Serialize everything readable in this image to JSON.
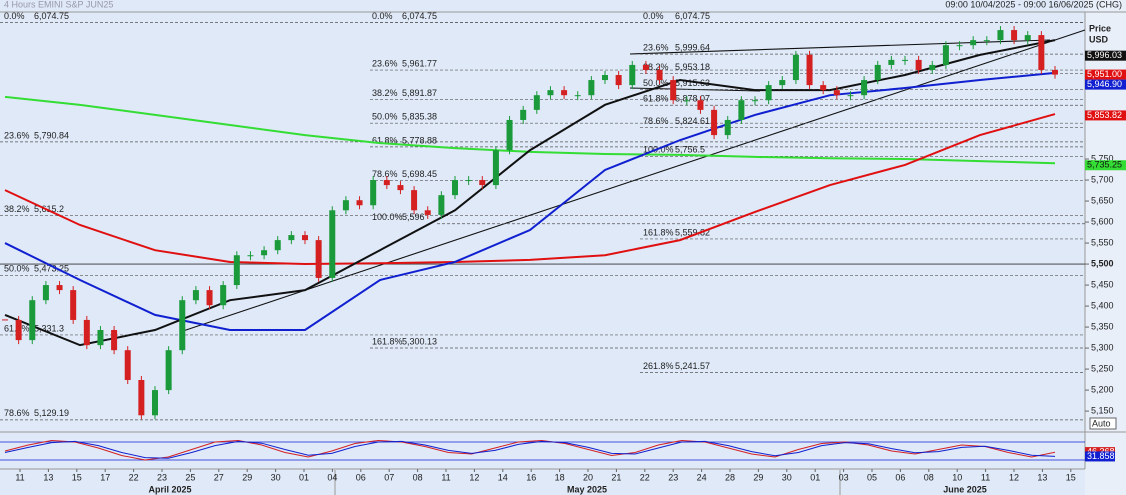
{
  "chart_data": {
    "type": "candlestick",
    "title": "4 Hours EMINI S&P JUN25",
    "date_range": "09:00 10/04/2025 - 09:00 16/06/2025 (CHG)",
    "y_label": "Price",
    "y_unit": "USD",
    "button": "Auto",
    "ylim": [
      5105,
      6100
    ],
    "yticks": [
      {
        "value": 5150,
        "label": "5,150"
      },
      {
        "value": 5200,
        "label": "5,200"
      },
      {
        "value": 5250,
        "label": "5,250"
      },
      {
        "value": 5300,
        "label": "5,300"
      },
      {
        "value": 5350,
        "label": "5,350"
      },
      {
        "value": 5400,
        "label": "5,400"
      },
      {
        "value": 5450,
        "label": "5,450"
      },
      {
        "value": 5500,
        "label": "5,500"
      },
      {
        "value": 5550,
        "label": "5,550"
      },
      {
        "value": 5600,
        "label": "5,600"
      },
      {
        "value": 5650,
        "label": "5,650"
      },
      {
        "value": 5700,
        "label": "5,700"
      },
      {
        "value": 5750,
        "label": "5,750"
      }
    ],
    "x_labels": [
      "11",
      "13",
      "15",
      "17",
      "22",
      "23",
      "25",
      "27",
      "29",
      "30",
      "01",
      "04",
      "06",
      "07",
      "08",
      "11",
      "12",
      "14",
      "16",
      "18",
      "20",
      "21",
      "22",
      "23",
      "24",
      "28",
      "29",
      "30",
      "01",
      "03",
      "05",
      "06",
      "08",
      "10",
      "11",
      "12",
      "13",
      "15"
    ],
    "months": [
      "April 2025",
      "May 2025",
      "June 2025"
    ],
    "closes": [
      5367,
      5319,
      5414,
      5450,
      5438,
      5367,
      5307,
      5343,
      5295,
      5224,
      5140,
      5200,
      5295,
      5414,
      5438,
      5402,
      5450,
      5521,
      5521,
      5533,
      5557,
      5569,
      5557,
      5467,
      5628,
      5652,
      5640,
      5700,
      5688,
      5676,
      5628,
      5617,
      5664,
      5700,
      5700,
      5688,
      5771,
      5843,
      5867,
      5902,
      5914,
      5902,
      5902,
      5938,
      5950,
      5926,
      5974,
      5962,
      5938,
      5890,
      5890,
      5867,
      5807,
      5843,
      5890,
      5890,
      5926,
      5938,
      5998,
      5926,
      5914,
      5902,
      5902,
      5938,
      5974,
      5986,
      5986,
      5962,
      5974,
      6021,
      6021,
      6033,
      6033,
      6057,
      6033,
      6045,
      5962,
      5951
    ],
    "up_color": "#1a9a3a",
    "down_color": "#d42020",
    "series": [
      {
        "color": "#33dd33",
        "values": [
          5898,
          5879,
          5855,
          5831,
          5807,
          5788,
          5776,
          5767,
          5762,
          5760,
          5755,
          5752,
          5750,
          5745,
          5740
        ]
      },
      {
        "color": "#e01010",
        "values": [
          5676,
          5593,
          5533,
          5505,
          5500,
          5502,
          5505,
          5510,
          5521,
          5557,
          5624,
          5688,
          5736,
          5807,
          5857
        ]
      },
      {
        "color": "#1020d0",
        "values": [
          5550,
          5462,
          5379,
          5343,
          5343,
          5462,
          5505,
          5581,
          5724,
          5795,
          5855,
          5902,
          5919,
          5938,
          5955
        ]
      },
      {
        "color": "#111111",
        "values": [
          5379,
          5307,
          5343,
          5414,
          5438,
          5533,
          5628,
          5771,
          5879,
          5938,
          5914,
          5914,
          5950,
          5998,
          6033
        ]
      }
    ],
    "fib_sets": [
      [
        {
          "level": "0.0%",
          "price": {
            "value": 6074.75,
            "label": "6,074.75"
          }
        },
        {
          "level": "23.6%",
          "price": {
            "value": 5790.84,
            "label": "5,790.84"
          }
        },
        {
          "level": "38.2%",
          "price": {
            "value": 5615.2,
            "label": "5,615.2"
          }
        },
        {
          "level": "50.0%",
          "price": {
            "value": 5473.25,
            "label": "5,473.25"
          }
        },
        {
          "level": "61.8%",
          "price": {
            "value": 5331.3,
            "label": "5,331.3"
          }
        },
        {
          "level": "78.6%",
          "price": {
            "value": 5129.19,
            "label": "5,129.19"
          }
        }
      ],
      [
        {
          "level": "0.0%",
          "price": {
            "value": 6074.75,
            "label": "6,074.75"
          }
        },
        {
          "level": "23.6%",
          "price": {
            "value": 5961.77,
            "label": "5,961.77"
          }
        },
        {
          "level": "38.2%",
          "price": {
            "value": 5891.87,
            "label": "5,891.87"
          }
        },
        {
          "level": "50.0%",
          "price": {
            "value": 5835.38,
            "label": "5,835.38"
          }
        },
        {
          "level": "61.8%",
          "price": {
            "value": 5778.88,
            "label": "5,778.88"
          }
        },
        {
          "level": "78.6%",
          "price": {
            "value": 5698.45,
            "label": "5,698.45"
          }
        },
        {
          "level": "100.0%",
          "price": {
            "value": 5596,
            "label": "5,596"
          }
        },
        {
          "level": "161.8%",
          "price": {
            "value": 5300.13,
            "label": "5,300.13"
          }
        }
      ],
      [
        {
          "level": "0.0%",
          "price": {
            "value": 6074.75,
            "label": "6,074.75"
          }
        },
        {
          "level": "23.6%",
          "price": {
            "value": 5999.64,
            "label": "5,999.64"
          }
        },
        {
          "level": "38.2%",
          "price": {
            "value": 5953.18,
            "label": "5,953.18"
          }
        },
        {
          "level": "50.0%",
          "price": {
            "value": 5915.63,
            "label": "5,915.63"
          }
        },
        {
          "level": "61.8%",
          "price": {
            "value": 5878.07,
            "label": "5,878.07"
          }
        },
        {
          "level": "78.6%",
          "price": {
            "value": 5824.61,
            "label": "5,824.61"
          }
        },
        {
          "level": "100.0%",
          "price": {
            "value": 5756.5,
            "label": "5,756.5"
          }
        },
        {
          "level": "161.8%",
          "price": {
            "value": 5559.82,
            "label": "5,559.82"
          }
        },
        {
          "level": "261.8%",
          "price": {
            "value": 5241.57,
            "label": "5,241.57"
          }
        }
      ]
    ],
    "price_tags": [
      {
        "price": {
          "value": 5996.03,
          "label": "5,996.03"
        },
        "color": "#111111"
      },
      {
        "price": {
          "value": 5951.0,
          "label": "5,951.00"
        },
        "color": "#e01010"
      },
      {
        "price": {
          "value": 5946.9,
          "label": "5,946.90"
        },
        "color": "#1020d0"
      },
      {
        "price": {
          "value": 5853.82,
          "label": "5,853.82"
        },
        "color": "#e01010"
      },
      {
        "price": {
          "value": 5735.25,
          "label": "5,735.25"
        },
        "color": "#33dd33"
      }
    ],
    "stoch": {
      "ylim": [
        0,
        100
      ],
      "yticks": [
        20,
        80
      ],
      "series": [
        {
          "color": "#d42020",
          "values": [
            50,
            70,
            85,
            80,
            60,
            35,
            20,
            30,
            55,
            80,
            85,
            70,
            45,
            30,
            50,
            75,
            85,
            80,
            65,
            45,
            40,
            60,
            80,
            85,
            75,
            55,
            35,
            45,
            70,
            85,
            80,
            60,
            40,
            30,
            55,
            75,
            80,
            70,
            50,
            40,
            55,
            70,
            65,
            45,
            30,
            46
          ]
        },
        {
          "color": "#1020d0",
          "values": [
            45,
            62,
            78,
            82,
            68,
            45,
            28,
            26,
            45,
            68,
            82,
            76,
            55,
            36,
            42,
            65,
            80,
            82,
            70,
            52,
            42,
            52,
            72,
            82,
            78,
            62,
            42,
            40,
            60,
            80,
            82,
            68,
            48,
            34,
            45,
            68,
            78,
            74,
            58,
            44,
            48,
            62,
            66,
            52,
            36,
            32
          ]
        }
      ],
      "value_tags": [
        {
          "value": 46.368,
          "label": "46.368",
          "color": "#d42020"
        },
        {
          "value": 31.858,
          "label": "31.858",
          "color": "#1020d0"
        }
      ]
    }
  }
}
